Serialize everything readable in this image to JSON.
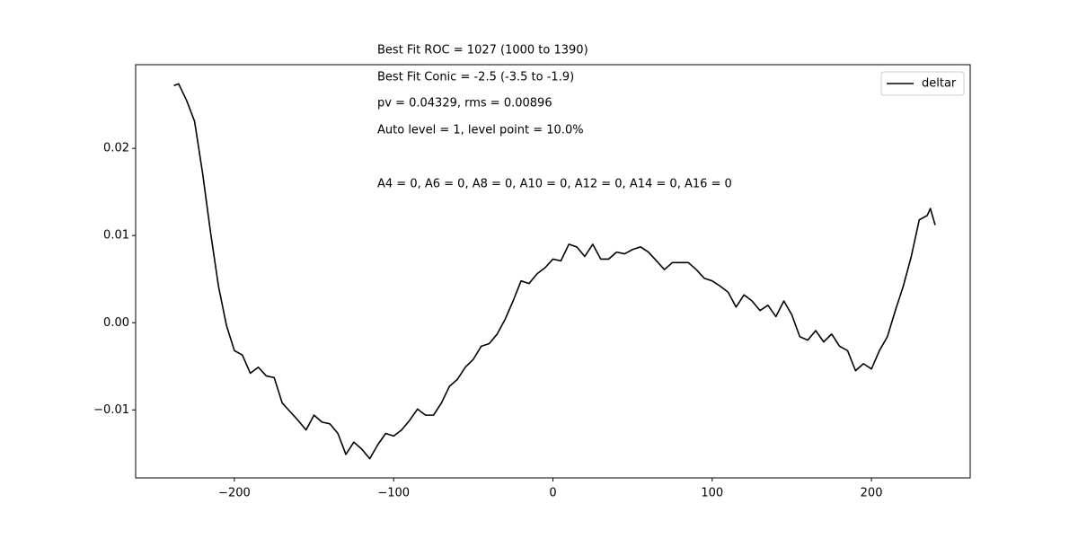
{
  "chart_data": {
    "type": "line",
    "annotations": [
      "Best Fit ROC = 1027  (1000 to 1390)",
      "Best Fit Conic = -2.5  (-3.5 to -1.9)",
      "pv = 0.04329, rms = 0.00896",
      "Auto level = 1, level point = 10.0%",
      "A4 = 0, A6 = 0, A8 = 0, A10 = 0, A12 = 0, A14 = 0, A16 = 0"
    ],
    "x": [
      -238,
      -235,
      -230,
      -225,
      -220,
      -215,
      -210,
      -205,
      -200,
      -195,
      -190,
      -185,
      -180,
      -175,
      -170,
      -165,
      -160,
      -155,
      -150,
      -145,
      -140,
      -135,
      -130,
      -125,
      -120,
      -115,
      -110,
      -105,
      -100,
      -95,
      -90,
      -85,
      -80,
      -75,
      -70,
      -65,
      -60,
      -55,
      -50,
      -45,
      -40,
      -35,
      -30,
      -25,
      -20,
      -15,
      -10,
      -5,
      0,
      5,
      10,
      15,
      20,
      25,
      30,
      35,
      40,
      45,
      50,
      55,
      60,
      65,
      70,
      75,
      80,
      85,
      90,
      95,
      100,
      105,
      110,
      115,
      120,
      125,
      130,
      135,
      140,
      145,
      150,
      155,
      160,
      165,
      170,
      175,
      180,
      185,
      190,
      195,
      200,
      205,
      210,
      215,
      220,
      225,
      230,
      235,
      237,
      240
    ],
    "series": [
      {
        "name": "deltar",
        "color": "#000000",
        "values": [
          0.0272,
          0.0274,
          0.0255,
          0.0231,
          0.0172,
          0.0104,
          0.0042,
          -0.0003,
          -0.0032,
          -0.0037,
          -0.0058,
          -0.0051,
          -0.0061,
          -0.0063,
          -0.0092,
          -0.0102,
          -0.0112,
          -0.0123,
          -0.0106,
          -0.0114,
          -0.0116,
          -0.0127,
          -0.0151,
          -0.0137,
          -0.0145,
          -0.0156,
          -0.014,
          -0.0127,
          -0.013,
          -0.0123,
          -0.0112,
          -0.0099,
          -0.0106,
          -0.0106,
          -0.0092,
          -0.0073,
          -0.0065,
          -0.0051,
          -0.0042,
          -0.0027,
          -0.0024,
          -0.0013,
          0.0004,
          0.0025,
          0.0048,
          0.0045,
          0.0056,
          0.0063,
          0.0073,
          0.0071,
          0.009,
          0.0087,
          0.0076,
          0.009,
          0.0073,
          0.0073,
          0.0081,
          0.0079,
          0.0084,
          0.0087,
          0.0081,
          0.0071,
          0.0061,
          0.0069,
          0.0069,
          0.0069,
          0.0061,
          0.0051,
          0.0048,
          0.0042,
          0.0035,
          0.0018,
          0.0032,
          0.0025,
          0.0014,
          0.002,
          0.0007,
          0.0025,
          0.0009,
          -0.0016,
          -0.002,
          -0.0009,
          -0.0022,
          -0.0013,
          -0.0027,
          -0.0032,
          -0.0055,
          -0.0047,
          -0.0053,
          -0.0032,
          -0.0016,
          0.0014,
          0.0042,
          0.0076,
          0.0118,
          0.0123,
          0.0131,
          0.0112
        ]
      }
    ],
    "xlim": [
      -262,
      262
    ],
    "ylim": [
      -0.0178,
      0.0296
    ],
    "xticks": [
      {
        "value": -200,
        "label": "−200"
      },
      {
        "value": -100,
        "label": "−100"
      },
      0,
      100,
      200
    ],
    "yticks": [
      {
        "value": -0.01,
        "label": "−0.01"
      },
      {
        "value": 0,
        "label": "0.00"
      },
      0.01,
      0.02
    ],
    "legend": "upper right"
  }
}
